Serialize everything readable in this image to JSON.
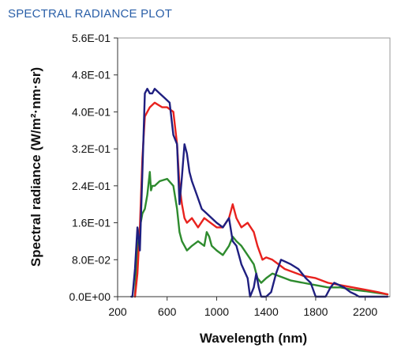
{
  "caption": {
    "text": "SPECTRAL RADIANCE PLOT",
    "color": "#2a5fa8"
  },
  "chart_data": {
    "type": "line",
    "title": "",
    "xlabel": "Wavelength (nm)",
    "ylabel": "Spectral radiance (W/m²·nm·sr)",
    "xlim": [
      200,
      2400
    ],
    "ylim": [
      0,
      0.56
    ],
    "x_ticks": [
      200,
      600,
      1000,
      1400,
      1800,
      2200
    ],
    "x_tick_labels": [
      "200",
      "600",
      "1000",
      "1400",
      "1800",
      "2200"
    ],
    "y_ticks": [
      0,
      0.08,
      0.16,
      0.24,
      0.32,
      0.4,
      0.48,
      0.56
    ],
    "y_tick_labels": [
      "0.0E+00",
      "8.0E-02",
      "1.6E-01",
      "2.4E-01",
      "3.2E-01",
      "4.0E-01",
      "4.8E-01",
      "5.6E-01"
    ],
    "grid": false,
    "legend": "none",
    "series": [
      {
        "color": "#2e8b2e",
        "x": [
          340,
          360,
          380,
          400,
          420,
          440,
          460,
          470,
          480,
          500,
          540,
          600,
          650,
          680,
          700,
          720,
          740,
          760,
          800,
          850,
          900,
          920,
          940,
          960,
          1000,
          1050,
          1100,
          1130,
          1160,
          1200,
          1250,
          1300,
          1330,
          1360,
          1400,
          1450,
          1500,
          1550,
          1600,
          1700,
          1800,
          1900,
          2000,
          2100,
          2200,
          2300,
          2380
        ],
        "y": [
          0.0,
          0.1,
          0.15,
          0.18,
          0.19,
          0.22,
          0.27,
          0.23,
          0.24,
          0.24,
          0.25,
          0.255,
          0.24,
          0.19,
          0.14,
          0.12,
          0.11,
          0.1,
          0.11,
          0.12,
          0.11,
          0.14,
          0.13,
          0.11,
          0.1,
          0.09,
          0.11,
          0.13,
          0.12,
          0.11,
          0.09,
          0.07,
          0.04,
          0.03,
          0.04,
          0.05,
          0.045,
          0.04,
          0.035,
          0.03,
          0.025,
          0.02,
          0.02,
          0.015,
          0.012,
          0.008,
          0.005
        ]
      },
      {
        "color": "#e8221e",
        "x": [
          340,
          360,
          380,
          400,
          420,
          440,
          460,
          500,
          560,
          600,
          650,
          680,
          700,
          720,
          740,
          760,
          800,
          850,
          900,
          950,
          1000,
          1050,
          1100,
          1130,
          1160,
          1200,
          1250,
          1300,
          1330,
          1370,
          1400,
          1450,
          1500,
          1550,
          1600,
          1700,
          1800,
          1900,
          2000,
          2100,
          2200,
          2300,
          2380
        ],
        "y": [
          0.0,
          0.05,
          0.15,
          0.3,
          0.39,
          0.4,
          0.41,
          0.42,
          0.41,
          0.41,
          0.4,
          0.33,
          0.24,
          0.2,
          0.17,
          0.16,
          0.17,
          0.15,
          0.17,
          0.16,
          0.15,
          0.15,
          0.17,
          0.2,
          0.17,
          0.15,
          0.16,
          0.14,
          0.11,
          0.08,
          0.085,
          0.08,
          0.07,
          0.06,
          0.055,
          0.045,
          0.04,
          0.03,
          0.025,
          0.02,
          0.015,
          0.01,
          0.005
        ]
      },
      {
        "color": "#1f1f80",
        "x": [
          310,
          320,
          340,
          360,
          380,
          400,
          420,
          440,
          460,
          480,
          500,
          540,
          580,
          620,
          650,
          680,
          700,
          720,
          740,
          760,
          780,
          800,
          840,
          880,
          920,
          960,
          1000,
          1050,
          1100,
          1130,
          1160,
          1200,
          1250,
          1270,
          1300,
          1320,
          1340,
          1360,
          1380,
          1400,
          1440,
          1480,
          1520,
          1560,
          1600,
          1660,
          1720,
          1760,
          1800,
          1840,
          1880,
          1920,
          1950,
          1990,
          2030,
          2080,
          2120,
          2150,
          2300,
          2380
        ],
        "y": [
          0.0,
          0.0,
          0.06,
          0.15,
          0.1,
          0.27,
          0.44,
          0.45,
          0.44,
          0.44,
          0.45,
          0.44,
          0.43,
          0.42,
          0.35,
          0.33,
          0.2,
          0.26,
          0.33,
          0.31,
          0.27,
          0.25,
          0.22,
          0.19,
          0.18,
          0.17,
          0.16,
          0.15,
          0.17,
          0.12,
          0.11,
          0.07,
          0.04,
          0.0,
          0.02,
          0.05,
          0.02,
          0.0,
          0.0,
          0.0,
          0.01,
          0.05,
          0.08,
          0.075,
          0.07,
          0.06,
          0.04,
          0.03,
          0.0,
          0.0,
          0.0,
          0.02,
          0.03,
          0.025,
          0.02,
          0.01,
          0.005,
          0.0,
          0.0,
          0.0
        ]
      }
    ]
  }
}
